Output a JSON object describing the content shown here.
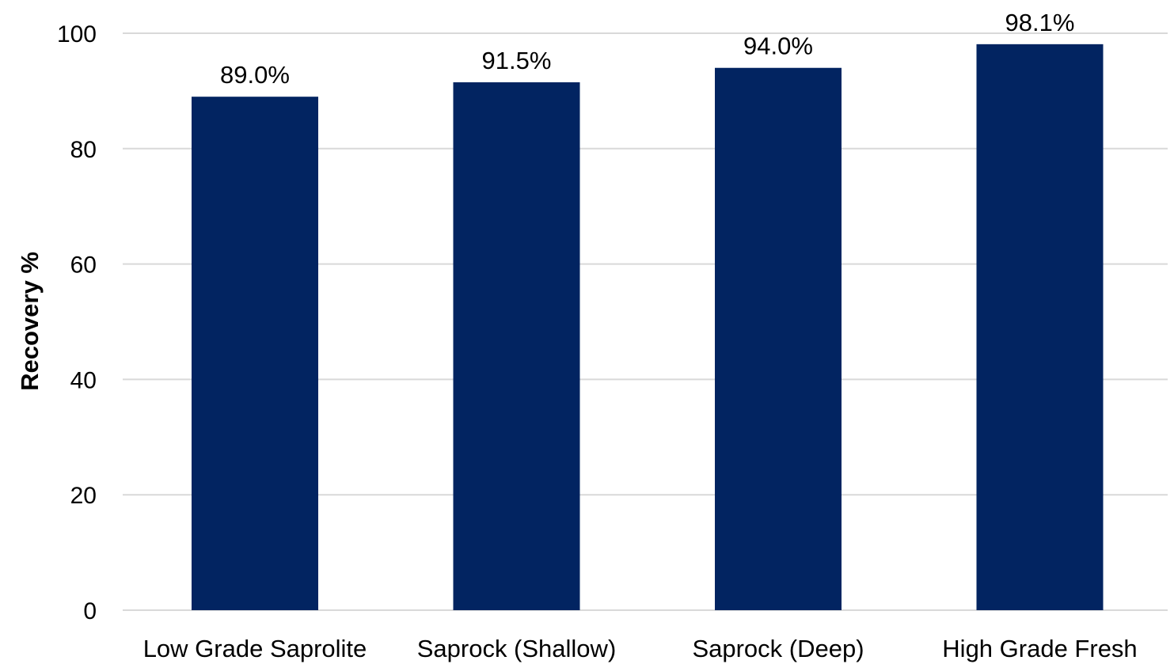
{
  "chart_data": {
    "type": "bar",
    "title": "",
    "xlabel": "",
    "ylabel": "Recovery %",
    "ylim": [
      0,
      100
    ],
    "yticks": [
      0,
      20,
      40,
      60,
      80,
      100
    ],
    "grid": true,
    "categories": [
      "Low Grade Saprolite",
      "Saprock (Shallow)",
      "Saprock (Deep)",
      "High Grade Fresh"
    ],
    "values": [
      89.0,
      91.5,
      94.0,
      98.1
    ],
    "data_labels": [
      "89.0%",
      "91.5%",
      "94.0%",
      "98.1%"
    ],
    "bar_color": "#022461",
    "grid_color": "#d9d9d9"
  }
}
